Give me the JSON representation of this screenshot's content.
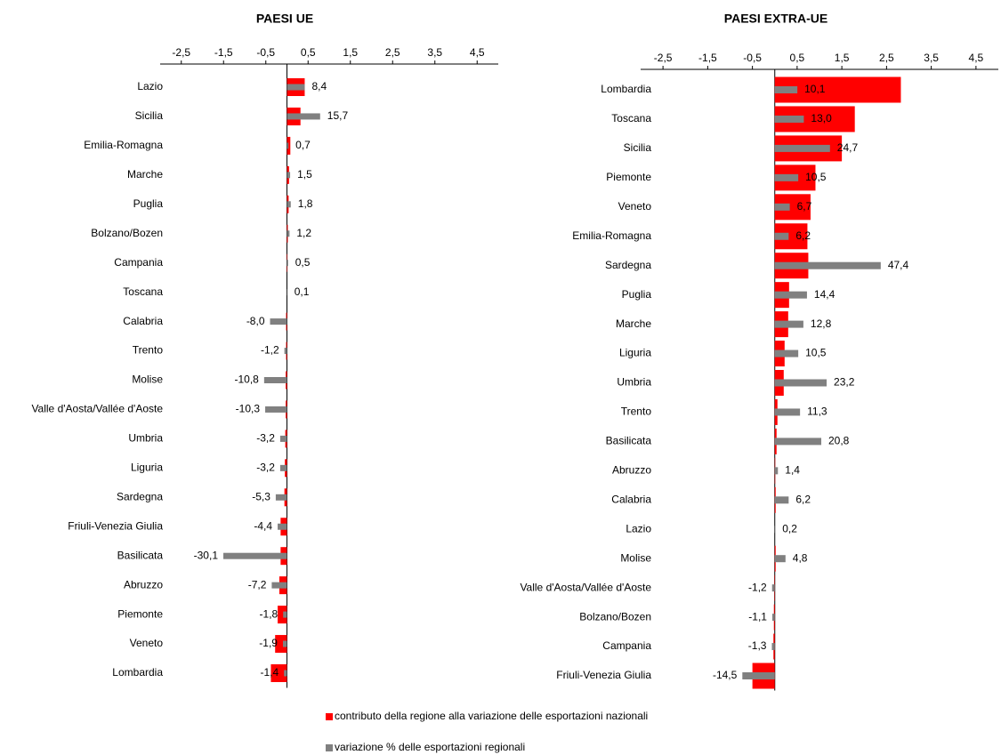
{
  "chart_data": [
    {
      "type": "bar",
      "orientation": "horizontal",
      "title": "PAESI UE",
      "categories": [
        "Lazio",
        "Sicilia",
        "Emilia-Romagna",
        "Marche",
        "Puglia",
        "Bolzano/Bozen",
        "Campania",
        "Toscana",
        "Calabria",
        "Trento",
        "Molise",
        "Valle d'Aosta/Vallée d'Aoste",
        "Umbria",
        "Liguria",
        "Sardegna",
        "Friuli-Venezia Giulia",
        "Basilicata",
        "Abruzzo",
        "Piemonte",
        "Veneto",
        "Lombardia"
      ],
      "xlim": [
        -3,
        5
      ],
      "xticks": [
        {
          "value": -2.5,
          "label": "-2,5"
        },
        {
          "value": -1.5,
          "label": "-1,5"
        },
        {
          "value": -0.5,
          "label": "-0,5"
        },
        {
          "value": 0.5,
          "label": "0,5"
        },
        {
          "value": 1.5,
          "label": "1,5"
        },
        {
          "value": 2.5,
          "label": "2,5"
        },
        {
          "value": 3.5,
          "label": "3,5"
        },
        {
          "value": 4.5,
          "label": "4,5"
        }
      ],
      "x2lim": [
        -60,
        100
      ],
      "series": [
        {
          "name": "contributo della regione alla variazione delle esportazioni nazionali",
          "color": "#ff0000",
          "values": [
            0.42,
            0.32,
            0.08,
            0.05,
            0.04,
            0.02,
            0.01,
            0.0,
            -0.02,
            -0.02,
            -0.03,
            -0.03,
            -0.04,
            -0.05,
            -0.06,
            -0.15,
            -0.15,
            -0.18,
            -0.22,
            -0.28,
            -0.38
          ]
        },
        {
          "name": "variazione % delle esportazioni regionali",
          "color": "#808080",
          "axis": "x2",
          "values": [
            8.4,
            15.7,
            0.7,
            1.5,
            1.8,
            1.2,
            0.5,
            0.1,
            -8.0,
            -1.2,
            -10.8,
            -10.3,
            -3.2,
            -3.2,
            -5.3,
            -4.4,
            -30.1,
            -7.2,
            -1.8,
            -1.9,
            -1.4
          ],
          "value_labels": [
            "8,4",
            "15,7",
            "0,7",
            "1,5",
            "1,8",
            "1,2",
            "0,5",
            "0,1",
            "-8,0",
            "-1,2",
            "-10,8",
            "-10,3",
            "-3,2",
            "-3,2",
            "-5,3",
            "-4,4",
            "-30,1",
            "-7,2",
            "-1,8",
            "-1,9",
            "-1,4"
          ]
        }
      ]
    },
    {
      "type": "bar",
      "orientation": "horizontal",
      "title": "PAESI EXTRA-UE",
      "categories": [
        "Lombardia",
        "Toscana",
        "Sicilia",
        "Piemonte",
        "Veneto",
        "Emilia-Romagna",
        "Sardegna",
        "Puglia",
        "Marche",
        "Liguria",
        "Umbria",
        "Trento",
        "Basilicata",
        "Abruzzo",
        "Calabria",
        "Lazio",
        "Molise",
        "Valle d'Aosta/Vallée d'Aoste",
        "Bolzano/Bozen",
        "Campania",
        "Friuli-Venezia Giulia"
      ],
      "xlim": [
        -3,
        5
      ],
      "xticks": [
        {
          "value": -2.5,
          "label": "-2,5"
        },
        {
          "value": -1.5,
          "label": "-1,5"
        },
        {
          "value": -0.5,
          "label": "-0,5"
        },
        {
          "value": 0.5,
          "label": "0,5"
        },
        {
          "value": 1.5,
          "label": "1,5"
        },
        {
          "value": 2.5,
          "label": "2,5"
        },
        {
          "value": 3.5,
          "label": "3,5"
        },
        {
          "value": 4.5,
          "label": "4,5"
        }
      ],
      "x2lim": [
        -60,
        100
      ],
      "series": [
        {
          "color": "#ff0000",
          "values": [
            2.82,
            1.79,
            1.5,
            0.91,
            0.8,
            0.73,
            0.75,
            0.32,
            0.3,
            0.22,
            0.2,
            0.06,
            0.04,
            0.01,
            0.02,
            0.0,
            0.02,
            -0.01,
            -0.02,
            -0.03,
            -0.5
          ]
        },
        {
          "color": "#808080",
          "axis": "x2",
          "values": [
            10.1,
            13.0,
            24.7,
            10.5,
            6.7,
            6.2,
            47.4,
            14.4,
            12.8,
            10.5,
            23.2,
            11.3,
            20.8,
            1.4,
            6.2,
            0.2,
            4.8,
            -1.2,
            -1.1,
            -1.3,
            -14.5
          ],
          "value_labels": [
            "10,1",
            "13,0",
            "24,7",
            "10,5",
            "6,7",
            "6,2",
            "47,4",
            "14,4",
            "12,8",
            "10,5",
            "23,2",
            "11,3",
            "20,8",
            "1,4",
            "6,2",
            "0,2",
            "4,8",
            "-1,2",
            "-1,1",
            "-1,3",
            "-14,5"
          ]
        }
      ]
    }
  ]
}
